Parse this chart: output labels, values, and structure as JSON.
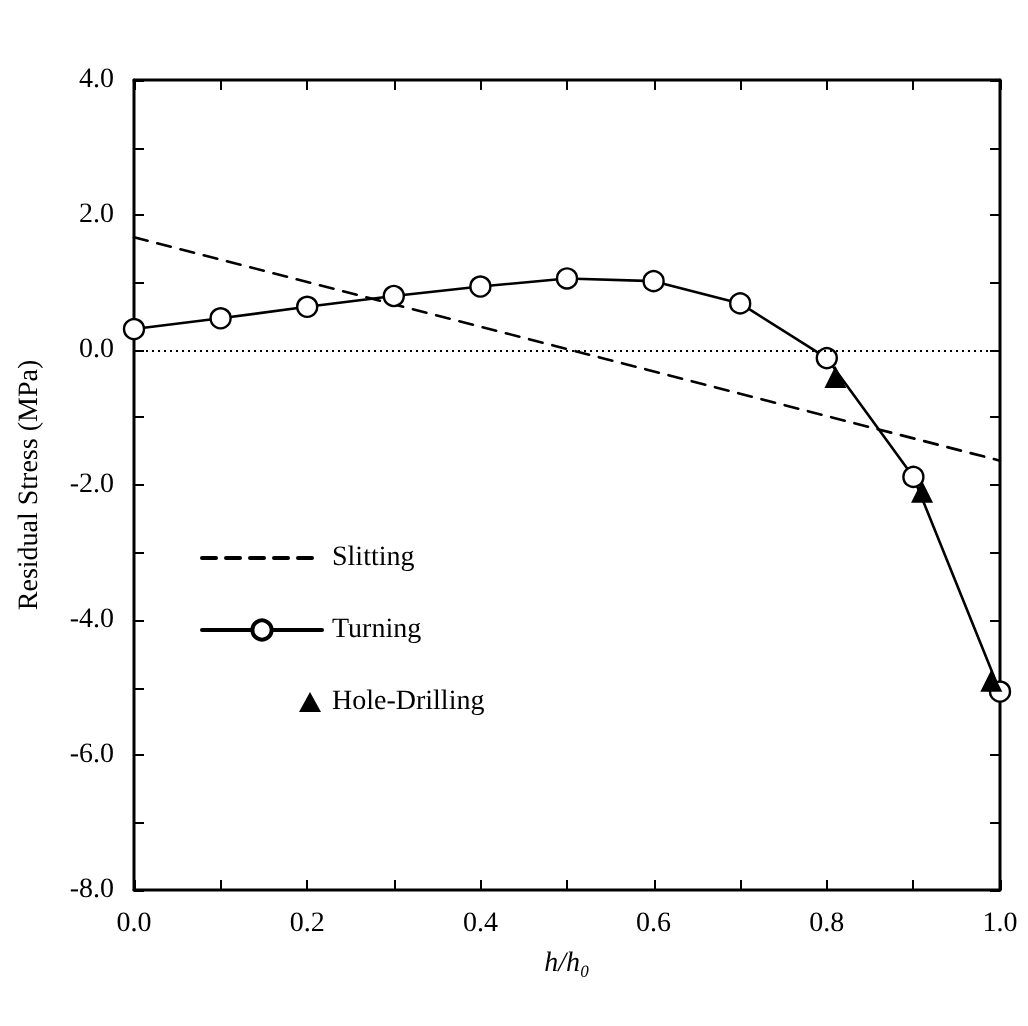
{
  "chart_data": {
    "type": "line",
    "xlabel": "h/h₀",
    "ylabel": "Residual Stress (MPa)",
    "xlim": [
      0,
      1
    ],
    "ylim": [
      -8,
      4
    ],
    "xticks": [
      {
        "value": 0,
        "label": "0.0"
      },
      {
        "value": 0.1,
        "label": null
      },
      0.2,
      {
        "value": 0.3,
        "label": null
      },
      0.4,
      {
        "value": 0.5,
        "label": null
      },
      0.6,
      {
        "value": 0.7,
        "label": null
      },
      0.8,
      {
        "value": 0.9,
        "label": null
      },
      {
        "value": 1,
        "label": "1.0"
      }
    ],
    "yticks": [
      {
        "value": -8,
        "label": "-8.0"
      },
      {
        "value": -7,
        "label": null
      },
      {
        "value": -6,
        "label": "-6.0"
      },
      {
        "value": -5,
        "label": null
      },
      {
        "value": -4,
        "label": "-4.0"
      },
      {
        "value": -3,
        "label": null
      },
      {
        "value": -2,
        "label": "-2.0"
      },
      {
        "value": -1,
        "label": null
      },
      {
        "value": 0,
        "label": "0.0"
      },
      {
        "value": 1,
        "label": null
      },
      {
        "value": 2,
        "label": "2.0"
      },
      {
        "value": 3,
        "label": null
      },
      {
        "value": 4,
        "label": "4.0"
      }
    ],
    "series": [
      {
        "name": "Slitting",
        "color": "#000000",
        "line_style": "dashed",
        "marker": "none",
        "x": [
          0,
          1
        ],
        "values": [
          1.67,
          -1.64
        ]
      },
      {
        "name": "Turning",
        "color": "#000000",
        "line_style": "solid",
        "marker": "circle",
        "x": [
          0,
          0.1,
          0.2,
          0.3,
          0.4,
          0.5,
          0.6,
          0.7,
          0.8,
          0.9,
          1.0
        ],
        "values": [
          0.31,
          0.47,
          0.64,
          0.8,
          0.94,
          1.06,
          1.02,
          0.69,
          -0.12,
          -1.88,
          -5.06
        ]
      },
      {
        "name": "Hole-Drilling",
        "type": "scatter",
        "color": "#000000",
        "marker": "triangle",
        "x": [
          0.81,
          0.91,
          0.99
        ],
        "values": [
          -0.4,
          -2.1,
          -4.9
        ]
      }
    ],
    "ref_lines": [
      {
        "axis": "y",
        "value": 0,
        "line_style": "dotted",
        "color": "#000000"
      }
    ],
    "legend": "bottom left",
    "grid": false
  }
}
